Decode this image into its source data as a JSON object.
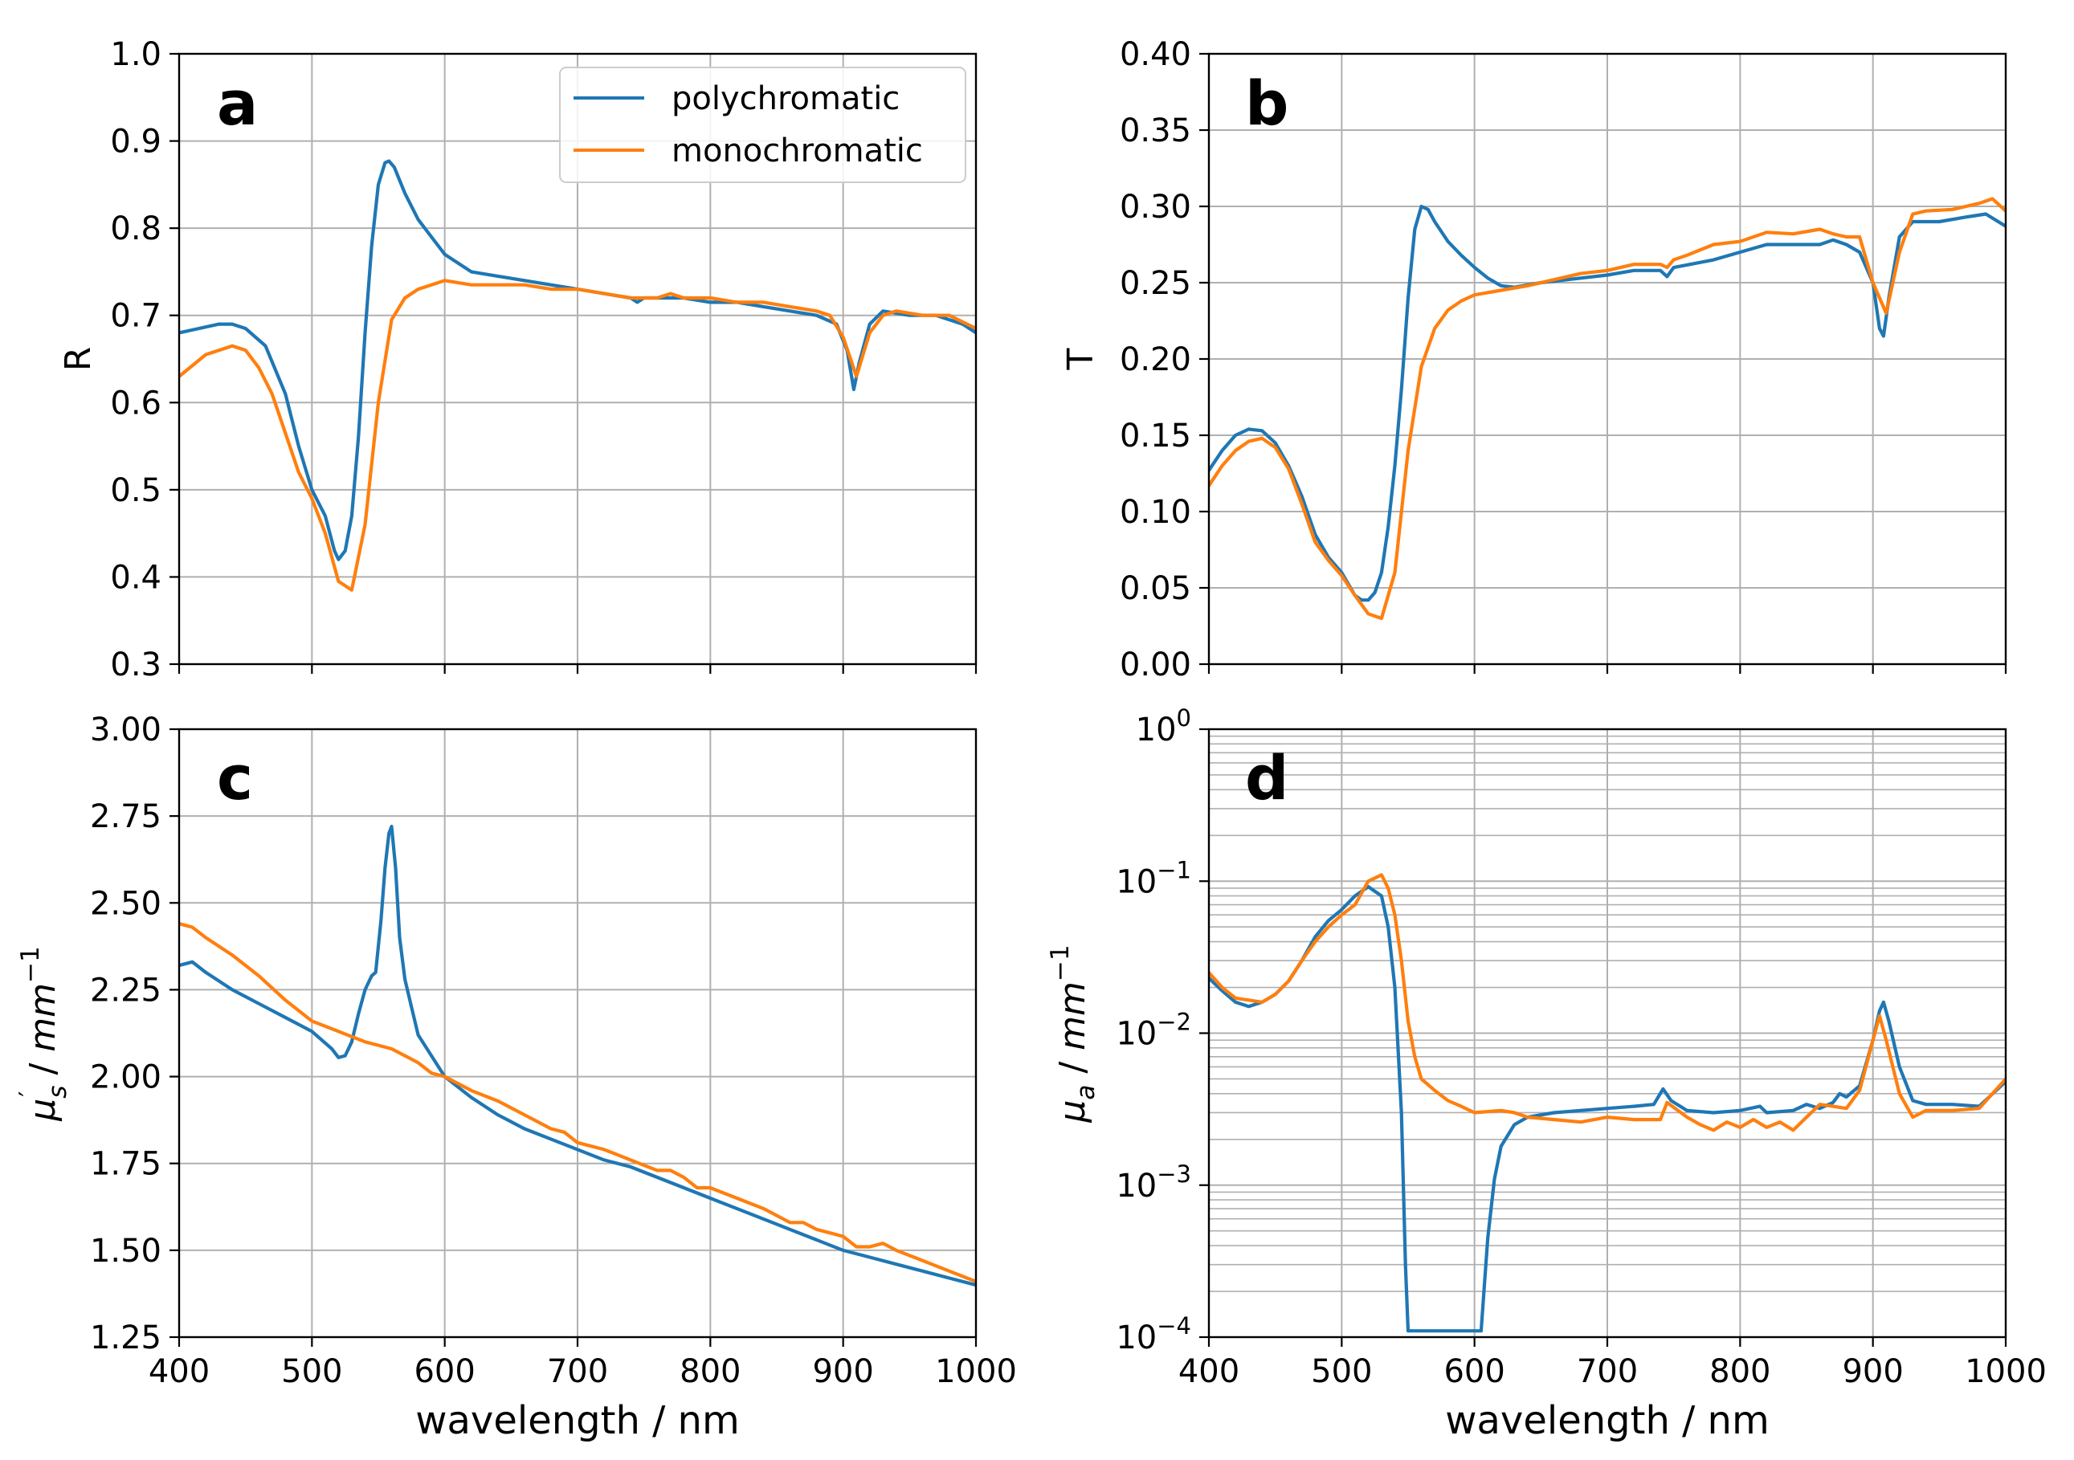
{
  "colors": {
    "polychromatic": "#1f77b4",
    "monochromatic": "#ff7f0e",
    "grid": "#b0b0b0"
  },
  "chart_data": [
    {
      "id": "a",
      "panel_label": "a",
      "type": "line",
      "yscale": "linear",
      "xlim": [
        400,
        1000
      ],
      "ylim": [
        0.3,
        1.0
      ],
      "xticks": [
        400,
        500,
        600,
        700,
        800,
        900,
        1000
      ],
      "yticks": [
        0.3,
        0.4,
        0.5,
        0.6,
        0.7,
        0.8,
        0.9,
        1.0
      ],
      "ytick_labels": [
        "0.3",
        "0.4",
        "0.5",
        "0.6",
        "0.7",
        "0.8",
        "0.9",
        "1.0"
      ],
      "xlabel": "",
      "ylabel": "R",
      "grid": true,
      "legend": "top-right",
      "legend_entries": [
        "polychromatic",
        "monochromatic"
      ],
      "series": [
        {
          "name": "polychromatic",
          "x": [
            400,
            415,
            430,
            440,
            450,
            465,
            480,
            490,
            500,
            510,
            517,
            520,
            525,
            530,
            535,
            540,
            545,
            550,
            555,
            558,
            562,
            570,
            580,
            590,
            600,
            620,
            640,
            660,
            680,
            700,
            720,
            740,
            745,
            750,
            760,
            780,
            800,
            820,
            840,
            860,
            880,
            895,
            903,
            908,
            912,
            920,
            930,
            950,
            970,
            990,
            1000
          ],
          "y": [
            0.68,
            0.685,
            0.69,
            0.69,
            0.685,
            0.665,
            0.61,
            0.55,
            0.5,
            0.47,
            0.43,
            0.42,
            0.43,
            0.47,
            0.56,
            0.68,
            0.78,
            0.85,
            0.875,
            0.877,
            0.87,
            0.84,
            0.81,
            0.79,
            0.77,
            0.75,
            0.745,
            0.74,
            0.735,
            0.73,
            0.725,
            0.72,
            0.715,
            0.72,
            0.72,
            0.72,
            0.715,
            0.715,
            0.71,
            0.705,
            0.7,
            0.69,
            0.66,
            0.615,
            0.645,
            0.69,
            0.705,
            0.7,
            0.7,
            0.69,
            0.68
          ]
        },
        {
          "name": "monochromatic",
          "x": [
            400,
            420,
            440,
            450,
            460,
            470,
            480,
            490,
            500,
            510,
            520,
            530,
            540,
            550,
            560,
            570,
            580,
            590,
            600,
            620,
            640,
            660,
            680,
            700,
            720,
            740,
            760,
            770,
            780,
            800,
            820,
            840,
            860,
            880,
            890,
            900,
            910,
            920,
            930,
            940,
            960,
            980,
            1000
          ],
          "y": [
            0.63,
            0.655,
            0.665,
            0.66,
            0.64,
            0.61,
            0.565,
            0.52,
            0.49,
            0.45,
            0.395,
            0.385,
            0.46,
            0.6,
            0.695,
            0.72,
            0.73,
            0.735,
            0.74,
            0.735,
            0.735,
            0.735,
            0.73,
            0.73,
            0.725,
            0.72,
            0.72,
            0.725,
            0.72,
            0.72,
            0.715,
            0.715,
            0.71,
            0.705,
            0.7,
            0.675,
            0.63,
            0.68,
            0.7,
            0.705,
            0.7,
            0.7,
            0.685
          ]
        }
      ]
    },
    {
      "id": "b",
      "panel_label": "b",
      "type": "line",
      "yscale": "linear",
      "xlim": [
        400,
        1000
      ],
      "ylim": [
        0.0,
        0.4
      ],
      "xticks": [
        400,
        500,
        600,
        700,
        800,
        900,
        1000
      ],
      "yticks": [
        0.0,
        0.05,
        0.1,
        0.15,
        0.2,
        0.25,
        0.3,
        0.35,
        0.4
      ],
      "ytick_labels": [
        "0.00",
        "0.05",
        "0.10",
        "0.15",
        "0.20",
        "0.25",
        "0.30",
        "0.35",
        "0.40"
      ],
      "xlabel": "",
      "ylabel": "T",
      "grid": true,
      "series": [
        {
          "name": "polychromatic",
          "x": [
            400,
            410,
            420,
            430,
            440,
            450,
            460,
            470,
            480,
            490,
            500,
            510,
            515,
            520,
            525,
            530,
            535,
            540,
            545,
            550,
            555,
            560,
            565,
            570,
            580,
            590,
            600,
            610,
            620,
            630,
            650,
            680,
            700,
            720,
            740,
            745,
            750,
            780,
            800,
            820,
            840,
            860,
            870,
            880,
            890,
            900,
            905,
            908,
            912,
            920,
            930,
            950,
            970,
            985,
            1000
          ],
          "y": [
            0.127,
            0.14,
            0.15,
            0.154,
            0.153,
            0.145,
            0.13,
            0.11,
            0.085,
            0.07,
            0.06,
            0.045,
            0.042,
            0.042,
            0.047,
            0.06,
            0.09,
            0.13,
            0.18,
            0.24,
            0.285,
            0.3,
            0.298,
            0.29,
            0.277,
            0.268,
            0.26,
            0.253,
            0.248,
            0.247,
            0.25,
            0.253,
            0.255,
            0.258,
            0.258,
            0.254,
            0.26,
            0.265,
            0.27,
            0.275,
            0.275,
            0.275,
            0.278,
            0.275,
            0.27,
            0.25,
            0.22,
            0.215,
            0.24,
            0.28,
            0.29,
            0.29,
            0.293,
            0.295,
            0.287
          ]
        },
        {
          "name": "monochromatic",
          "x": [
            400,
            410,
            420,
            430,
            440,
            450,
            460,
            470,
            480,
            490,
            500,
            510,
            520,
            530,
            540,
            550,
            560,
            570,
            580,
            590,
            600,
            620,
            640,
            660,
            680,
            700,
            720,
            740,
            745,
            750,
            760,
            780,
            800,
            820,
            840,
            860,
            870,
            880,
            890,
            900,
            905,
            910,
            920,
            930,
            940,
            960,
            980,
            990,
            1000
          ],
          "y": [
            0.117,
            0.13,
            0.14,
            0.146,
            0.148,
            0.142,
            0.128,
            0.105,
            0.08,
            0.068,
            0.058,
            0.045,
            0.033,
            0.03,
            0.06,
            0.14,
            0.195,
            0.22,
            0.232,
            0.238,
            0.242,
            0.245,
            0.248,
            0.252,
            0.256,
            0.258,
            0.262,
            0.262,
            0.26,
            0.265,
            0.268,
            0.275,
            0.277,
            0.283,
            0.282,
            0.285,
            0.282,
            0.28,
            0.28,
            0.25,
            0.24,
            0.23,
            0.27,
            0.295,
            0.297,
            0.298,
            0.302,
            0.305,
            0.297
          ]
        }
      ]
    },
    {
      "id": "c",
      "panel_label": "c",
      "type": "line",
      "yscale": "linear",
      "xlim": [
        400,
        1000
      ],
      "ylim": [
        1.25,
        3.0
      ],
      "xticks": [
        400,
        500,
        600,
        700,
        800,
        900,
        1000
      ],
      "xtick_labels": [
        "400",
        "500",
        "600",
        "700",
        "800",
        "900",
        "1000"
      ],
      "yticks": [
        1.25,
        1.5,
        1.75,
        2.0,
        2.25,
        2.5,
        2.75,
        3.0
      ],
      "ytick_labels": [
        "1.25",
        "1.50",
        "1.75",
        "2.00",
        "2.25",
        "2.50",
        "2.75",
        "3.00"
      ],
      "xlabel": "wavelength / nm",
      "ylabel": "μ′s / mm−1",
      "grid": true,
      "series": [
        {
          "name": "polychromatic",
          "x": [
            400,
            410,
            420,
            440,
            460,
            480,
            500,
            515,
            520,
            525,
            530,
            535,
            540,
            545,
            548,
            552,
            555,
            558,
            560,
            563,
            566,
            570,
            575,
            580,
            590,
            600,
            620,
            640,
            660,
            680,
            700,
            720,
            740,
            760,
            780,
            800,
            820,
            840,
            860,
            880,
            900,
            920,
            940,
            960,
            980,
            1000
          ],
          "y": [
            2.32,
            2.33,
            2.3,
            2.25,
            2.21,
            2.17,
            2.13,
            2.08,
            2.055,
            2.06,
            2.1,
            2.18,
            2.25,
            2.29,
            2.3,
            2.45,
            2.6,
            2.7,
            2.72,
            2.6,
            2.4,
            2.28,
            2.2,
            2.12,
            2.06,
            2.0,
            1.94,
            1.89,
            1.85,
            1.82,
            1.79,
            1.76,
            1.74,
            1.71,
            1.68,
            1.65,
            1.62,
            1.59,
            1.56,
            1.53,
            1.5,
            1.48,
            1.46,
            1.44,
            1.42,
            1.4
          ]
        },
        {
          "name": "monochromatic",
          "x": [
            400,
            410,
            420,
            440,
            460,
            480,
            500,
            520,
            540,
            550,
            560,
            570,
            580,
            590,
            600,
            620,
            640,
            660,
            680,
            690,
            700,
            720,
            740,
            760,
            770,
            780,
            790,
            800,
            820,
            840,
            860,
            870,
            880,
            890,
            900,
            910,
            920,
            930,
            940,
            960,
            980,
            1000
          ],
          "y": [
            2.44,
            2.43,
            2.4,
            2.35,
            2.29,
            2.22,
            2.16,
            2.13,
            2.1,
            2.09,
            2.08,
            2.06,
            2.04,
            2.01,
            2.0,
            1.96,
            1.93,
            1.89,
            1.85,
            1.84,
            1.81,
            1.79,
            1.76,
            1.73,
            1.73,
            1.71,
            1.68,
            1.68,
            1.65,
            1.62,
            1.58,
            1.58,
            1.56,
            1.55,
            1.54,
            1.51,
            1.51,
            1.52,
            1.5,
            1.47,
            1.44,
            1.41
          ]
        }
      ]
    },
    {
      "id": "d",
      "panel_label": "d",
      "type": "line",
      "yscale": "log",
      "xlim": [
        400,
        1000
      ],
      "ylim": [
        0.0001,
        1
      ],
      "xticks": [
        400,
        500,
        600,
        700,
        800,
        900,
        1000
      ],
      "xtick_labels": [
        "400",
        "500",
        "600",
        "700",
        "800",
        "900",
        "1000"
      ],
      "yticks": [
        0.0001,
        0.001,
        0.01,
        0.1,
        1
      ],
      "ytick_labels": [
        {
          "base": "10",
          "exp": "−4"
        },
        {
          "base": "10",
          "exp": "−3"
        },
        {
          "base": "10",
          "exp": "−2"
        },
        {
          "base": "10",
          "exp": "−1"
        },
        {
          "base": "10",
          "exp": "0"
        }
      ],
      "xlabel": "wavelength / nm",
      "ylabel": "μa / mm−1",
      "grid": true,
      "minor_grid": true,
      "series": [
        {
          "name": "polychromatic",
          "x": [
            400,
            410,
            420,
            430,
            440,
            450,
            460,
            470,
            480,
            490,
            500,
            510,
            520,
            530,
            535,
            540,
            545,
            548,
            550,
            555,
            560,
            570,
            580,
            590,
            600,
            602,
            605,
            610,
            615,
            620,
            630,
            640,
            660,
            680,
            700,
            720,
            735,
            742,
            748,
            760,
            780,
            800,
            815,
            820,
            840,
            850,
            860,
            870,
            875,
            880,
            890,
            900,
            905,
            908,
            912,
            920,
            930,
            940,
            960,
            980,
            1000
          ],
          "y": [
            0.023,
            0.019,
            0.016,
            0.015,
            0.016,
            0.018,
            0.022,
            0.03,
            0.043,
            0.055,
            0.065,
            0.08,
            0.092,
            0.08,
            0.05,
            0.02,
            0.003,
            0.0003,
            0.00011,
            0.00011,
            0.00011,
            0.00011,
            0.00011,
            0.00011,
            0.00011,
            0.00011,
            0.00011,
            0.00045,
            0.0011,
            0.0018,
            0.0025,
            0.0028,
            0.003,
            0.0031,
            0.0032,
            0.0033,
            0.0034,
            0.0043,
            0.0036,
            0.0031,
            0.003,
            0.0031,
            0.0033,
            0.003,
            0.0031,
            0.0034,
            0.0032,
            0.0035,
            0.004,
            0.0038,
            0.0045,
            0.009,
            0.014,
            0.016,
            0.012,
            0.006,
            0.0036,
            0.0034,
            0.0034,
            0.0033,
            0.0048
          ]
        },
        {
          "name": "monochromatic",
          "x": [
            400,
            410,
            420,
            430,
            440,
            450,
            460,
            470,
            480,
            490,
            500,
            510,
            520,
            530,
            535,
            540,
            545,
            550,
            555,
            560,
            570,
            580,
            590,
            600,
            620,
            630,
            640,
            660,
            680,
            700,
            720,
            740,
            745,
            760,
            770,
            780,
            790,
            800,
            810,
            820,
            830,
            840,
            850,
            860,
            870,
            880,
            890,
            900,
            905,
            910,
            920,
            930,
            940,
            960,
            980,
            1000
          ],
          "y": [
            0.025,
            0.02,
            0.017,
            0.0165,
            0.016,
            0.018,
            0.022,
            0.03,
            0.04,
            0.05,
            0.06,
            0.07,
            0.1,
            0.11,
            0.09,
            0.06,
            0.03,
            0.012,
            0.007,
            0.005,
            0.0042,
            0.0036,
            0.0033,
            0.003,
            0.0031,
            0.003,
            0.0028,
            0.0027,
            0.0026,
            0.0028,
            0.0027,
            0.0027,
            0.0035,
            0.0028,
            0.0025,
            0.0023,
            0.0026,
            0.0024,
            0.0027,
            0.0024,
            0.0026,
            0.0023,
            0.0028,
            0.0034,
            0.0033,
            0.0032,
            0.0042,
            0.009,
            0.013,
            0.009,
            0.004,
            0.0028,
            0.0031,
            0.0031,
            0.0032,
            0.005
          ]
        }
      ]
    }
  ]
}
